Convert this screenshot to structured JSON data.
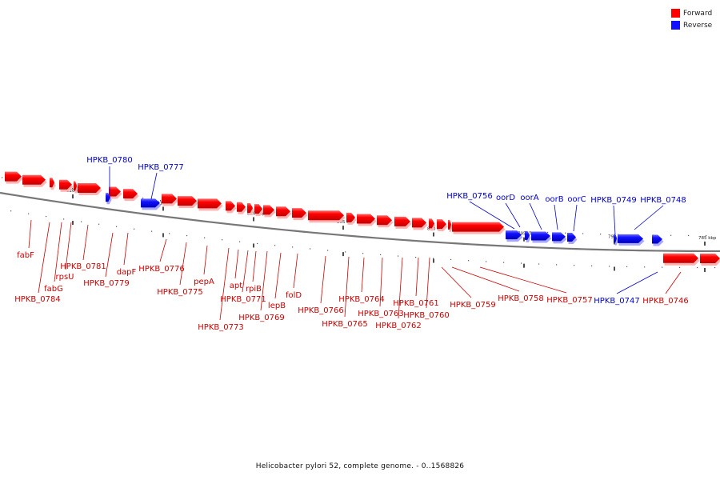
{
  "legend": {
    "forward": {
      "label": "Forward",
      "color": "#ff0000"
    },
    "reverse": {
      "label": "Reverse",
      "color": "#1010ff"
    }
  },
  "caption": "Helicobacter pylori 52, complete genome. - 0..1568826",
  "ticks": [
    "820 kbp",
    "815 kbp",
    "810 kbp",
    "805 kbp",
    "800 kbp",
    "795 kbp",
    "790 kbp",
    "785 kbp"
  ],
  "genes": {
    "forward": [
      "fabF",
      "HPKB_0784",
      "fabG",
      "rpsU",
      "HPKB_0781",
      "HPKB_0779",
      "dapF",
      "HPKB_0776",
      "HPKB_0775",
      "pepA",
      "HPKB_0773",
      "apt",
      "HPKB_0771",
      "rpiB",
      "HPKB_0769",
      "lepB",
      "folD",
      "HPKB_0766",
      "HPKB_0765",
      "HPKB_0764",
      "HPKB_0763",
      "HPKB_0762",
      "HPKB_0761",
      "HPKB_0760",
      "HPKB_0759",
      "HPKB_0758",
      "HPKB_0757",
      "HPKB_0746"
    ],
    "reverse": [
      "HPKB_0780",
      "HPKB_0777",
      "HPKB_0756",
      "oorD",
      "oorA",
      "oorB",
      "oorC",
      "HPKB_0749",
      "HPKB_0748",
      "HPKB_0747"
    ]
  }
}
